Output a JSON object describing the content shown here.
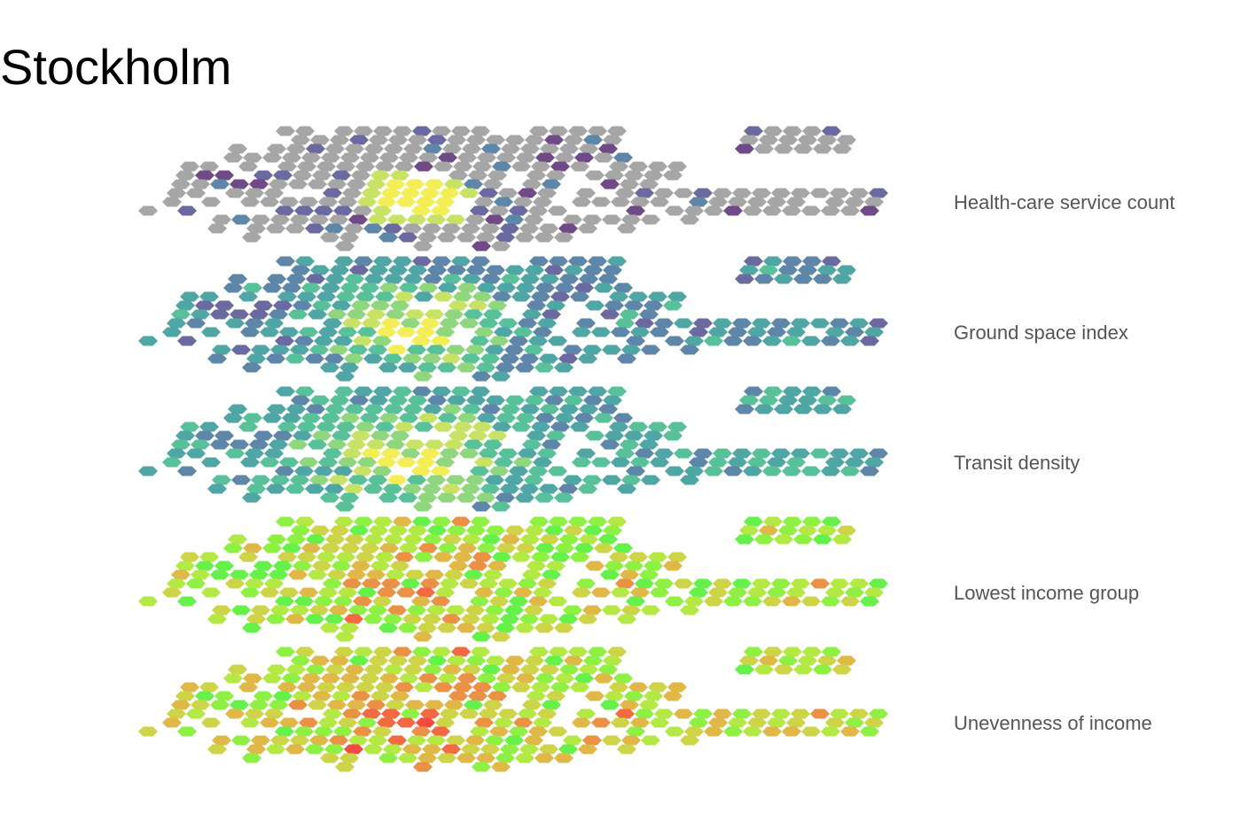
{
  "title": "Stockholm",
  "layers": [
    {
      "id": "health",
      "label": "Health-care service count",
      "palette": "health"
    },
    {
      "id": "gsi",
      "label": "Ground space index",
      "palette": "viridis"
    },
    {
      "id": "transit",
      "label": "Transit density",
      "palette": "viridis"
    },
    {
      "id": "lowinc",
      "label": "Lowest income group",
      "palette": "heat"
    },
    {
      "id": "uneven",
      "label": "Unevenness of income",
      "palette": "heat"
    }
  ],
  "colors": {
    "no_data": "#a6a6a6",
    "viridis": [
      "#6f4a86",
      "#6b6aa0",
      "#5e86a8",
      "#4fa6a4",
      "#58c19a",
      "#8fd67f",
      "#c8e266",
      "#f3ee55"
    ],
    "heat": [
      "#66f04a",
      "#8ef043",
      "#b4e845",
      "#cdd448",
      "#e0b848",
      "#eb9145",
      "#f26a42",
      "#f44a40"
    ],
    "label_text": "#555555"
  }
}
